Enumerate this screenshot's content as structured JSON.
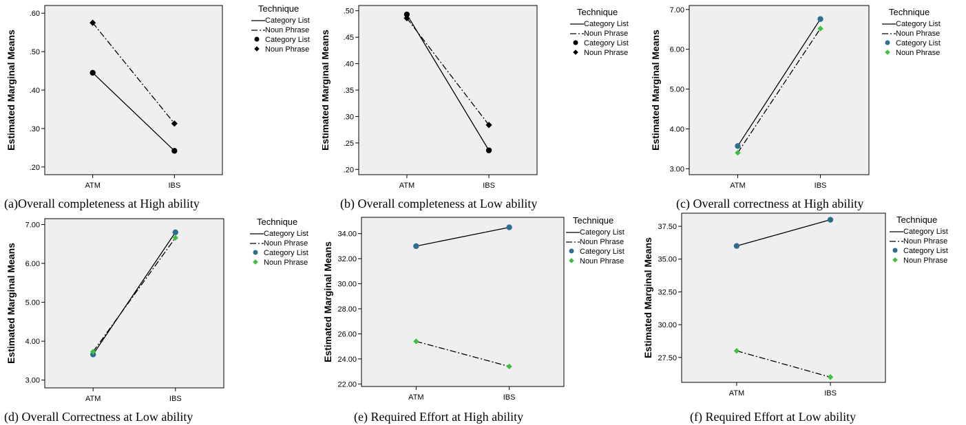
{
  "colors": {
    "plot_bg": "#efefef",
    "axis": "#000000",
    "marker_dark": "#000000",
    "marker_cl": "#2f6d8d",
    "marker_np": "#3fbf3f"
  },
  "chart_data": [
    {
      "type": "line",
      "caption": "(a)Overall completeness at High ability",
      "ylabel": "Estimated Marginal Means",
      "legend_title": "Technique",
      "legend_labels": [
        "Category List",
        "Noun Phrase",
        "Category List",
        "Noun Phrase"
      ],
      "legend_placement": "right",
      "categories": [
        "ATM",
        "IBS"
      ],
      "ylim": [
        0.18,
        0.62
      ],
      "yticks": [
        0.2,
        0.3,
        0.4,
        0.5,
        0.6
      ],
      "ytick_labels": [
        ".20",
        ".30",
        ".40",
        ".50",
        ".60"
      ],
      "marker_style": "dark",
      "series": [
        {
          "name": "Category List",
          "values": [
            0.445,
            0.242
          ]
        },
        {
          "name": "Noun Phrase",
          "values": [
            0.575,
            0.313
          ]
        }
      ]
    },
    {
      "type": "line",
      "caption": "(b) Overall completeness at Low ability",
      "ylabel": "Estimated Marginal Means",
      "legend_title": "Technique",
      "legend_labels": [
        "Category List",
        "Noun Phrase",
        "Category List",
        "Noun Phrase"
      ],
      "legend_placement": "right",
      "categories": [
        "ATM",
        "IBS"
      ],
      "ylim": [
        0.19,
        0.51
      ],
      "yticks": [
        0.2,
        0.25,
        0.3,
        0.35,
        0.4,
        0.45,
        0.5
      ],
      "ytick_labels": [
        ".20",
        ".25",
        ".30",
        ".35",
        ".40",
        ".45",
        ".50"
      ],
      "marker_style": "dark",
      "series": [
        {
          "name": "Category List",
          "values": [
            0.493,
            0.236
          ]
        },
        {
          "name": "Noun Phrase",
          "values": [
            0.486,
            0.284
          ]
        }
      ]
    },
    {
      "type": "line",
      "caption": "(c) Overall correctness at High ability",
      "ylabel": "Estimated Marginal Means",
      "legend_title": "Technique",
      "legend_labels": [
        "Category List",
        "Noun Phrase",
        "Category List",
        "Noun Phrase"
      ],
      "legend_placement": "right",
      "categories": [
        "ATM",
        "IBS"
      ],
      "ylim": [
        2.85,
        7.1
      ],
      "yticks": [
        3,
        4,
        5,
        6,
        7
      ],
      "ytick_labels": [
        "3.00",
        "4.00",
        "5.00",
        "6.00",
        "7.00"
      ],
      "marker_style": "color",
      "series": [
        {
          "name": "Category List",
          "values": [
            3.57,
            6.76
          ]
        },
        {
          "name": "Noun Phrase",
          "values": [
            3.4,
            6.52
          ]
        }
      ]
    },
    {
      "type": "line",
      "caption": "(d) Overall Correctness at Low ability",
      "ylabel": "Estimated Marginal Means",
      "legend_title": "Technique",
      "legend_labels": [
        "Category List",
        "Noun Phrase",
        "Category List",
        "Noun Phrase"
      ],
      "legend_placement": "right",
      "categories": [
        "ATM",
        "IBS"
      ],
      "ylim": [
        2.8,
        7.15
      ],
      "yticks": [
        3,
        4,
        5,
        6,
        7
      ],
      "ytick_labels": [
        "3.00",
        "4.00",
        "5.00",
        "6.00",
        "7.00"
      ],
      "marker_style": "color",
      "series": [
        {
          "name": "Category List",
          "values": [
            3.66,
            6.8
          ]
        },
        {
          "name": "Noun Phrase",
          "values": [
            3.73,
            6.66
          ]
        }
      ]
    },
    {
      "type": "line",
      "caption": "(e) Required Effort at High ability",
      "ylabel": "Estimated Marginal Means",
      "legend_title": "Technique",
      "legend_labels": [
        "Category List",
        "Noun Phrase",
        "Category List",
        "Noun Phrase"
      ],
      "legend_placement": "right",
      "categories": [
        "ATM",
        "IBS"
      ],
      "ylim": [
        21.8,
        35.3
      ],
      "yticks": [
        22,
        24,
        26,
        28,
        30,
        32,
        34
      ],
      "ytick_labels": [
        "22.00",
        "24.00",
        "26.00",
        "28.00",
        "30.00",
        "32.00",
        "34.00"
      ],
      "marker_style": "color",
      "series": [
        {
          "name": "Category List",
          "values": [
            33.0,
            34.5
          ]
        },
        {
          "name": "Noun Phrase",
          "values": [
            25.4,
            23.4
          ]
        }
      ]
    },
    {
      "type": "line",
      "caption": "(f) Required Effort at Low ability",
      "ylabel": "Estimated Marginal Means",
      "legend_title": "Technique",
      "legend_labels": [
        "Category List",
        "Noun Phrase",
        "Category List",
        "Noun Phrase"
      ],
      "legend_placement": "right",
      "categories": [
        "ATM",
        "IBS"
      ],
      "ylim": [
        25.6,
        38.5
      ],
      "yticks": [
        27.5,
        30,
        32.5,
        35,
        37.5
      ],
      "ytick_labels": [
        "27.50",
        "30.00",
        "32.50",
        "35.00",
        "37.50"
      ],
      "marker_style": "color",
      "series": [
        {
          "name": "Category List",
          "values": [
            36.0,
            38.0
          ]
        },
        {
          "name": "Noun Phrase",
          "values": [
            28.0,
            26.0
          ]
        }
      ]
    }
  ]
}
